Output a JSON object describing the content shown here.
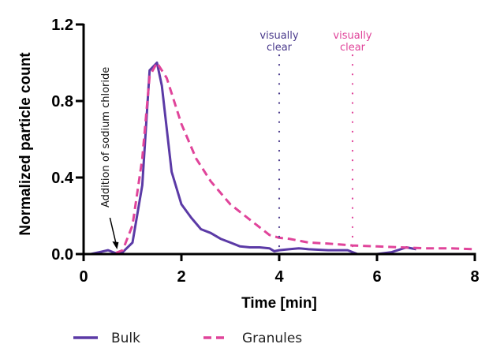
{
  "chart_data": {
    "type": "line",
    "title": "",
    "xlabel": "Time [min]",
    "ylabel": "Normalized particle count",
    "xlim": [
      0,
      8
    ],
    "ylim": [
      0,
      1.2
    ],
    "xticks": [
      0,
      2,
      4,
      6,
      8
    ],
    "xtick_labels": [
      "0",
      "2",
      "4",
      "6",
      "8"
    ],
    "yticks": [
      0.0,
      0.4,
      0.8,
      1.2
    ],
    "ytick_labels": [
      "0.0",
      "0.4",
      "0.8",
      "1.2"
    ],
    "grid": false,
    "legend_position": "bottom",
    "series": [
      {
        "name": "Bulk",
        "style": "solid",
        "color": "#5b3aa6",
        "x": [
          0.15,
          0.5,
          0.7,
          0.8,
          1.0,
          1.2,
          1.35,
          1.5,
          1.6,
          1.8,
          2.0,
          2.2,
          2.4,
          2.6,
          2.8,
          3.0,
          3.2,
          3.4,
          3.6,
          3.8,
          3.9,
          4.0,
          4.2,
          4.4,
          4.6,
          5.0,
          5.4,
          5.6,
          6.0,
          6.3,
          6.6,
          6.8
        ],
        "y": [
          0.0,
          0.02,
          0.0,
          0.01,
          0.06,
          0.36,
          0.96,
          1.0,
          0.88,
          0.43,
          0.26,
          0.19,
          0.13,
          0.11,
          0.08,
          0.06,
          0.04,
          0.035,
          0.035,
          0.03,
          0.015,
          0.02,
          0.025,
          0.03,
          0.025,
          0.02,
          0.02,
          0.0,
          0.0,
          0.01,
          0.035,
          0.025
        ]
      },
      {
        "name": "Granules",
        "style": "dashed",
        "color": "#e0449a",
        "x": [
          0.15,
          0.6,
          0.8,
          1.0,
          1.2,
          1.35,
          1.5,
          1.7,
          2.0,
          2.3,
          2.6,
          3.0,
          3.4,
          3.8,
          4.0,
          4.2,
          4.6,
          5.0,
          5.5,
          6.0,
          6.5,
          7.0,
          7.5,
          8.0
        ],
        "y": [
          0.0,
          0.0,
          0.02,
          0.15,
          0.5,
          0.93,
          1.0,
          0.92,
          0.68,
          0.5,
          0.38,
          0.26,
          0.18,
          0.1,
          0.085,
          0.08,
          0.06,
          0.055,
          0.045,
          0.04,
          0.035,
          0.03,
          0.03,
          0.025
        ]
      }
    ],
    "vlines": [
      {
        "x": 4.0,
        "color": "#4a3a8c",
        "style": "dotted",
        "label_line1": "visually",
        "label_line2": "clear"
      },
      {
        "x": 5.5,
        "color": "#e0449a",
        "style": "dotted",
        "label_line1": "visually",
        "label_line2": "clear"
      }
    ],
    "annotations": [
      {
        "text": "Addition of sodium chloride",
        "arrow_to_x": 0.7,
        "arrow_to_y": 0.0,
        "orientation": "vertical"
      }
    ]
  }
}
